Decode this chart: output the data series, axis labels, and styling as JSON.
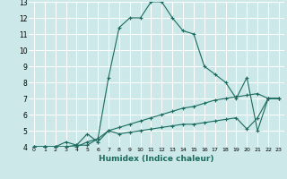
{
  "xlabel": "Humidex (Indice chaleur)",
  "xlim": [
    -0.5,
    23.5
  ],
  "ylim": [
    4,
    13
  ],
  "xticks": [
    0,
    1,
    2,
    3,
    4,
    5,
    6,
    7,
    8,
    9,
    10,
    11,
    12,
    13,
    14,
    15,
    16,
    17,
    18,
    19,
    20,
    21,
    22,
    23
  ],
  "yticks": [
    4,
    5,
    6,
    7,
    8,
    9,
    10,
    11,
    12,
    13
  ],
  "bg_color": "#cce8e8",
  "line_color": "#1a6b5e",
  "grid_color": "#ffffff",
  "series": [
    {
      "x": [
        0,
        1,
        2,
        3,
        4,
        5,
        6,
        7,
        8,
        9,
        10,
        11,
        12,
        13,
        14,
        15,
        16,
        17,
        18,
        19,
        20,
        21,
        22,
        23
      ],
      "y": [
        4.0,
        4.0,
        4.0,
        4.3,
        4.1,
        4.1,
        4.5,
        8.3,
        11.4,
        12.0,
        12.0,
        13.0,
        13.0,
        12.0,
        11.2,
        11.0,
        9.0,
        8.5,
        8.0,
        7.0,
        8.3,
        5.0,
        7.0,
        7.0
      ]
    },
    {
      "x": [
        0,
        1,
        2,
        3,
        4,
        5,
        6,
        7,
        8,
        9,
        10,
        11,
        12,
        13,
        14,
        15,
        16,
        17,
        18,
        19,
        20,
        21,
        22,
        23
      ],
      "y": [
        4.0,
        4.0,
        4.0,
        4.0,
        4.0,
        4.3,
        4.5,
        5.0,
        5.2,
        5.4,
        5.6,
        5.8,
        6.0,
        6.2,
        6.4,
        6.5,
        6.7,
        6.9,
        7.0,
        7.1,
        7.2,
        7.3,
        7.0,
        7.0
      ]
    },
    {
      "x": [
        0,
        1,
        2,
        3,
        4,
        5,
        6,
        7,
        8,
        9,
        10,
        11,
        12,
        13,
        14,
        15,
        16,
        17,
        18,
        19,
        20,
        21,
        22,
        23
      ],
      "y": [
        4.0,
        4.0,
        4.0,
        4.0,
        4.1,
        4.8,
        4.3,
        5.0,
        4.8,
        4.9,
        5.0,
        5.1,
        5.2,
        5.3,
        5.4,
        5.4,
        5.5,
        5.6,
        5.7,
        5.8,
        5.1,
        5.8,
        7.0,
        7.0
      ]
    }
  ]
}
